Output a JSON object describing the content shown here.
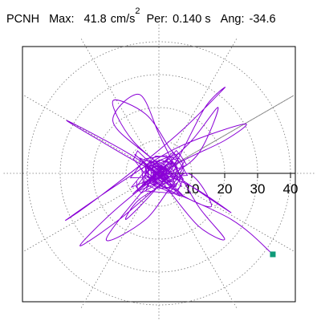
{
  "header": {
    "station": "PCNH",
    "max_label": "Max:",
    "max_value": "41.8",
    "max_unit": "cm/s",
    "max_unit_exp": "2",
    "per_label": "Per:",
    "per_value": "0.140 s",
    "ang_label": "Ang:",
    "ang_value": "-34.6"
  },
  "chart_data": {
    "type": "scatter",
    "coordinate_system": "polar",
    "radial_ticks": [
      10,
      20,
      30,
      40
    ],
    "radial_tick_labels": [
      "10",
      "20",
      "30",
      "40"
    ],
    "radial_max": 45,
    "angular_grid_step_deg": 30,
    "grid": true,
    "trace_color": "#8a00d6",
    "marker_color": "#0f9a78",
    "final_point": {
      "x": 34.5,
      "y": -24.5
    },
    "trajectory": [
      {
        "x": 0,
        "y": 0
      },
      {
        "x": 2,
        "y": 1
      },
      {
        "x": -3,
        "y": 4
      },
      {
        "x": 6,
        "y": -2
      },
      {
        "x": -8,
        "y": 10
      },
      {
        "x": -14,
        "y": 22
      },
      {
        "x": -4,
        "y": 18
      },
      {
        "x": 3,
        "y": 8
      },
      {
        "x": 7,
        "y": 1
      },
      {
        "x": -6,
        "y": -8
      },
      {
        "x": -10,
        "y": -14
      },
      {
        "x": -2,
        "y": -6
      },
      {
        "x": 5,
        "y": 3
      },
      {
        "x": 14,
        "y": 20
      },
      {
        "x": 20,
        "y": 26
      },
      {
        "x": 8,
        "y": 14
      },
      {
        "x": -5,
        "y": 3
      },
      {
        "x": -22,
        "y": -10
      },
      {
        "x": -28,
        "y": -14
      },
      {
        "x": -12,
        "y": -3
      },
      {
        "x": 6,
        "y": 8
      },
      {
        "x": 26,
        "y": 15
      },
      {
        "x": 20,
        "y": 10
      },
      {
        "x": 4,
        "y": 2
      },
      {
        "x": -12,
        "y": -10
      },
      {
        "x": -24,
        "y": -22
      },
      {
        "x": -12,
        "y": -14
      },
      {
        "x": 2,
        "y": -2
      },
      {
        "x": 12,
        "y": 6
      },
      {
        "x": 18,
        "y": 20
      },
      {
        "x": 10,
        "y": 10
      },
      {
        "x": -2,
        "y": -2
      },
      {
        "x": -16,
        "y": -20
      },
      {
        "x": -4,
        "y": -14
      },
      {
        "x": 8,
        "y": 0
      },
      {
        "x": 16,
        "y": -10
      },
      {
        "x": 6,
        "y": -6
      },
      {
        "x": -6,
        "y": 4
      },
      {
        "x": -20,
        "y": 12
      },
      {
        "x": -28,
        "y": 16
      },
      {
        "x": -18,
        "y": 10
      },
      {
        "x": -4,
        "y": 2
      },
      {
        "x": 10,
        "y": -4
      },
      {
        "x": 22,
        "y": -12
      },
      {
        "x": 10,
        "y": -4
      },
      {
        "x": -4,
        "y": 6
      },
      {
        "x": -14,
        "y": 16
      },
      {
        "x": -6,
        "y": 24
      },
      {
        "x": 0,
        "y": 12
      },
      {
        "x": 4,
        "y": 4
      },
      {
        "x": 12,
        "y": -10
      },
      {
        "x": 20,
        "y": -20
      },
      {
        "x": 12,
        "y": -16
      },
      {
        "x": 2,
        "y": -4
      },
      {
        "x": -4,
        "y": 2
      },
      {
        "x": -2,
        "y": -2
      },
      {
        "x": 2,
        "y": 1
      },
      {
        "x": -2,
        "y": 2
      },
      {
        "x": 3,
        "y": -1
      },
      {
        "x": -1,
        "y": -3
      },
      {
        "x": 22,
        "y": -14
      },
      {
        "x": 34.5,
        "y": -24.5
      }
    ]
  }
}
